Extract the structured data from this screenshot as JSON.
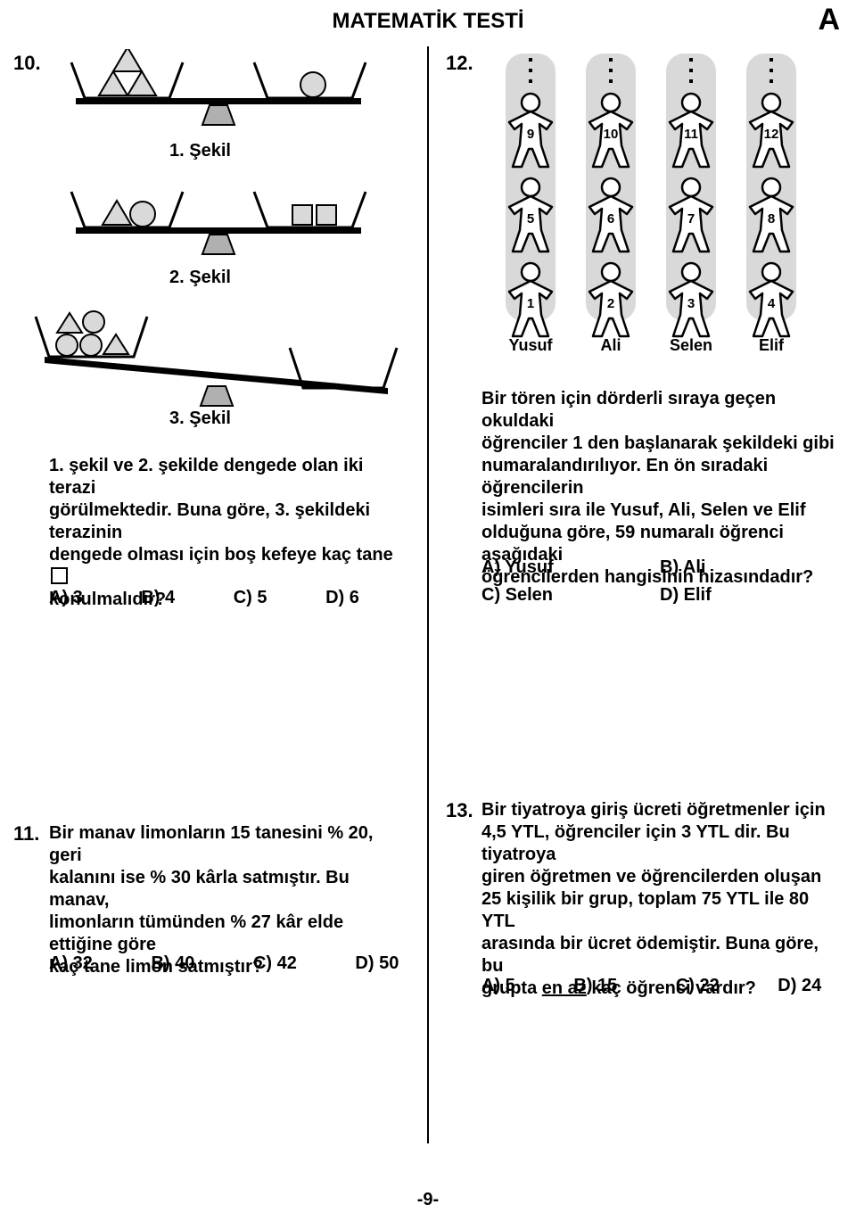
{
  "header": {
    "title": "MATEMATİK TESTİ",
    "booklet": "A",
    "footer": "-9-"
  },
  "q10": {
    "number": "10.",
    "fig1_label": "1. Şekil",
    "fig2_label": "2. Şekil",
    "fig3_label": "3. Şekil",
    "text_line1": "1. şekil ve 2. şekilde dengede olan iki terazi",
    "text_line2": "görülmektedir. Buna göre, 3. şekildeki terazinin",
    "text_line3": "dengede olması için boş kefeye kaç tane",
    "text_line4": "konulmalıdır?",
    "A": "A) 3",
    "B": "B) 4",
    "C": "C) 5",
    "D": "D) 6",
    "scales": {
      "pan_stroke": "#000",
      "pan_stroke_w": 3,
      "beam_stroke": "#000",
      "beam_h": 6,
      "fulcrum_fill": "#b0b0b0",
      "tri_fill": "#d9d9d9",
      "tri_stroke": "#000",
      "circle_fill": "#d9d9d9",
      "square_fill": "#d9d9d9",
      "s1_left": {
        "tris": 3,
        "circles": 0
      },
      "s1_right": {
        "tris": 0,
        "circles": 1
      },
      "s2_left": {
        "tris": 1,
        "circles": 1
      },
      "s2_right": {
        "squares": 2
      },
      "s3_left": {
        "tris": 2,
        "circles": 3
      }
    }
  },
  "q11": {
    "number": "11.",
    "text_line1": "Bir manav limonların 15 tanesini % 20, geri",
    "text_line2": "kalanını ise % 30 kârla satmıştır. Bu manav,",
    "text_line3": "limonların tümünden % 27 kâr elde ettiğine göre",
    "text_line4": "kaç tane limon satmıştır?",
    "A": "A) 32",
    "B": "B) 40",
    "C": "C) 42",
    "D": "D) 50"
  },
  "q12": {
    "number": "12.",
    "names": [
      "Yusuf",
      "Ali",
      "Selen",
      "Elif"
    ],
    "row_top": [
      "9",
      "10",
      "11",
      "12"
    ],
    "row_mid": [
      "5",
      "6",
      "7",
      "8"
    ],
    "row_bot": [
      "1",
      "2",
      "3",
      "4"
    ],
    "text_line1": "Bir tören için dörderli sıraya geçen okuldaki",
    "text_line2": "öğrenciler 1 den başlanarak şekildeki gibi",
    "text_line3": "numaralandırılıyor. En ön sıradaki öğrencilerin",
    "text_line4": "isimleri sıra ile Yusuf, Ali, Selen ve Elif",
    "text_line5": "olduğuna göre, 59 numaralı öğrenci aşağıdaki",
    "text_line6": "öğrencilerden hangisinin hizasındadır?",
    "A": "A) Yusuf",
    "B": "B) Ali",
    "C": "C) Selen",
    "D": "D) Elif",
    "figure": {
      "col_bg": "#d9d9d9",
      "stroke": "#000",
      "stroke_w": 2.5,
      "num_fontsize": 15
    }
  },
  "q13": {
    "number": "13.",
    "text_line1": "Bir tiyatroya giriş ücreti öğretmenler için",
    "text_line2": "4,5 YTL, öğrenciler için 3 YTL dir. Bu tiyatroya",
    "text_line3": "giren öğretmen ve öğrencilerden oluşan",
    "text_line4": "25 kişilik bir grup, toplam 75 YTL ile 80 YTL",
    "text_line5": "arasında bir ücret ödemiştir. Buna göre, bu",
    "text_line6_pre": "grupta ",
    "text_line6_u": "en az",
    "text_line6_post": " kaç öğrenci vardır?",
    "A": "A) 5",
    "B": "B) 15",
    "C": "C) 22",
    "D": "D) 24"
  }
}
